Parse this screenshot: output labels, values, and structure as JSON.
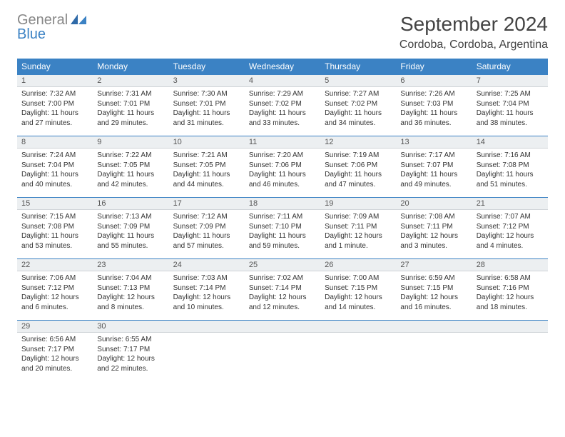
{
  "brand": {
    "part1": "General",
    "part2": "Blue"
  },
  "title": "September 2024",
  "location": "Cordoba, Cordoba, Argentina",
  "colors": {
    "header_bg": "#3b82c4",
    "header_text": "#ffffff",
    "daynum_bg": "#eceff1",
    "border": "#3b82c4",
    "text": "#333333",
    "page_bg": "#ffffff"
  },
  "fonts": {
    "title_size_pt": 21,
    "location_size_pt": 12,
    "dayheader_size_pt": 9,
    "body_size_pt": 7.5
  },
  "day_headers": [
    "Sunday",
    "Monday",
    "Tuesday",
    "Wednesday",
    "Thursday",
    "Friday",
    "Saturday"
  ],
  "weeks": [
    [
      {
        "n": "1",
        "sunrise": "Sunrise: 7:32 AM",
        "sunset": "Sunset: 7:00 PM",
        "day1": "Daylight: 11 hours",
        "day2": "and 27 minutes."
      },
      {
        "n": "2",
        "sunrise": "Sunrise: 7:31 AM",
        "sunset": "Sunset: 7:01 PM",
        "day1": "Daylight: 11 hours",
        "day2": "and 29 minutes."
      },
      {
        "n": "3",
        "sunrise": "Sunrise: 7:30 AM",
        "sunset": "Sunset: 7:01 PM",
        "day1": "Daylight: 11 hours",
        "day2": "and 31 minutes."
      },
      {
        "n": "4",
        "sunrise": "Sunrise: 7:29 AM",
        "sunset": "Sunset: 7:02 PM",
        "day1": "Daylight: 11 hours",
        "day2": "and 33 minutes."
      },
      {
        "n": "5",
        "sunrise": "Sunrise: 7:27 AM",
        "sunset": "Sunset: 7:02 PM",
        "day1": "Daylight: 11 hours",
        "day2": "and 34 minutes."
      },
      {
        "n": "6",
        "sunrise": "Sunrise: 7:26 AM",
        "sunset": "Sunset: 7:03 PM",
        "day1": "Daylight: 11 hours",
        "day2": "and 36 minutes."
      },
      {
        "n": "7",
        "sunrise": "Sunrise: 7:25 AM",
        "sunset": "Sunset: 7:04 PM",
        "day1": "Daylight: 11 hours",
        "day2": "and 38 minutes."
      }
    ],
    [
      {
        "n": "8",
        "sunrise": "Sunrise: 7:24 AM",
        "sunset": "Sunset: 7:04 PM",
        "day1": "Daylight: 11 hours",
        "day2": "and 40 minutes."
      },
      {
        "n": "9",
        "sunrise": "Sunrise: 7:22 AM",
        "sunset": "Sunset: 7:05 PM",
        "day1": "Daylight: 11 hours",
        "day2": "and 42 minutes."
      },
      {
        "n": "10",
        "sunrise": "Sunrise: 7:21 AM",
        "sunset": "Sunset: 7:05 PM",
        "day1": "Daylight: 11 hours",
        "day2": "and 44 minutes."
      },
      {
        "n": "11",
        "sunrise": "Sunrise: 7:20 AM",
        "sunset": "Sunset: 7:06 PM",
        "day1": "Daylight: 11 hours",
        "day2": "and 46 minutes."
      },
      {
        "n": "12",
        "sunrise": "Sunrise: 7:19 AM",
        "sunset": "Sunset: 7:06 PM",
        "day1": "Daylight: 11 hours",
        "day2": "and 47 minutes."
      },
      {
        "n": "13",
        "sunrise": "Sunrise: 7:17 AM",
        "sunset": "Sunset: 7:07 PM",
        "day1": "Daylight: 11 hours",
        "day2": "and 49 minutes."
      },
      {
        "n": "14",
        "sunrise": "Sunrise: 7:16 AM",
        "sunset": "Sunset: 7:08 PM",
        "day1": "Daylight: 11 hours",
        "day2": "and 51 minutes."
      }
    ],
    [
      {
        "n": "15",
        "sunrise": "Sunrise: 7:15 AM",
        "sunset": "Sunset: 7:08 PM",
        "day1": "Daylight: 11 hours",
        "day2": "and 53 minutes."
      },
      {
        "n": "16",
        "sunrise": "Sunrise: 7:13 AM",
        "sunset": "Sunset: 7:09 PM",
        "day1": "Daylight: 11 hours",
        "day2": "and 55 minutes."
      },
      {
        "n": "17",
        "sunrise": "Sunrise: 7:12 AM",
        "sunset": "Sunset: 7:09 PM",
        "day1": "Daylight: 11 hours",
        "day2": "and 57 minutes."
      },
      {
        "n": "18",
        "sunrise": "Sunrise: 7:11 AM",
        "sunset": "Sunset: 7:10 PM",
        "day1": "Daylight: 11 hours",
        "day2": "and 59 minutes."
      },
      {
        "n": "19",
        "sunrise": "Sunrise: 7:09 AM",
        "sunset": "Sunset: 7:11 PM",
        "day1": "Daylight: 12 hours",
        "day2": "and 1 minute."
      },
      {
        "n": "20",
        "sunrise": "Sunrise: 7:08 AM",
        "sunset": "Sunset: 7:11 PM",
        "day1": "Daylight: 12 hours",
        "day2": "and 3 minutes."
      },
      {
        "n": "21",
        "sunrise": "Sunrise: 7:07 AM",
        "sunset": "Sunset: 7:12 PM",
        "day1": "Daylight: 12 hours",
        "day2": "and 4 minutes."
      }
    ],
    [
      {
        "n": "22",
        "sunrise": "Sunrise: 7:06 AM",
        "sunset": "Sunset: 7:12 PM",
        "day1": "Daylight: 12 hours",
        "day2": "and 6 minutes."
      },
      {
        "n": "23",
        "sunrise": "Sunrise: 7:04 AM",
        "sunset": "Sunset: 7:13 PM",
        "day1": "Daylight: 12 hours",
        "day2": "and 8 minutes."
      },
      {
        "n": "24",
        "sunrise": "Sunrise: 7:03 AM",
        "sunset": "Sunset: 7:14 PM",
        "day1": "Daylight: 12 hours",
        "day2": "and 10 minutes."
      },
      {
        "n": "25",
        "sunrise": "Sunrise: 7:02 AM",
        "sunset": "Sunset: 7:14 PM",
        "day1": "Daylight: 12 hours",
        "day2": "and 12 minutes."
      },
      {
        "n": "26",
        "sunrise": "Sunrise: 7:00 AM",
        "sunset": "Sunset: 7:15 PM",
        "day1": "Daylight: 12 hours",
        "day2": "and 14 minutes."
      },
      {
        "n": "27",
        "sunrise": "Sunrise: 6:59 AM",
        "sunset": "Sunset: 7:15 PM",
        "day1": "Daylight: 12 hours",
        "day2": "and 16 minutes."
      },
      {
        "n": "28",
        "sunrise": "Sunrise: 6:58 AM",
        "sunset": "Sunset: 7:16 PM",
        "day1": "Daylight: 12 hours",
        "day2": "and 18 minutes."
      }
    ],
    [
      {
        "n": "29",
        "sunrise": "Sunrise: 6:56 AM",
        "sunset": "Sunset: 7:17 PM",
        "day1": "Daylight: 12 hours",
        "day2": "and 20 minutes."
      },
      {
        "n": "30",
        "sunrise": "Sunrise: 6:55 AM",
        "sunset": "Sunset: 7:17 PM",
        "day1": "Daylight: 12 hours",
        "day2": "and 22 minutes."
      },
      null,
      null,
      null,
      null,
      null
    ]
  ]
}
